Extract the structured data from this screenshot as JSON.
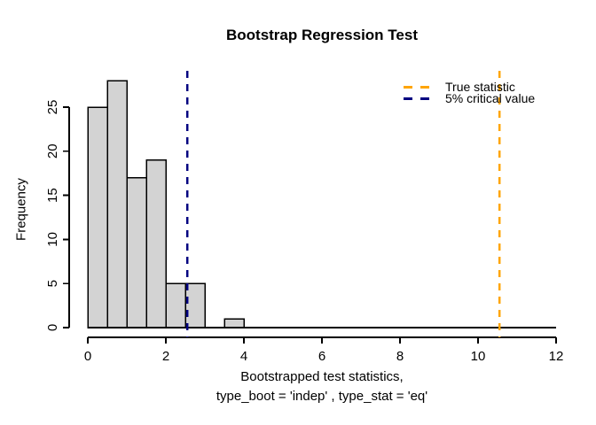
{
  "figure": {
    "title": "Bootstrap Regression Test",
    "ylabel": "Frequency",
    "xlabel_line1": "Bootstrapped test statistics,",
    "xlabel_line2": "type_boot = 'indep' , type_stat = 'eq'"
  },
  "legend": {
    "position": "top-right",
    "items": [
      {
        "label": "True statistic",
        "color": "#FFA500",
        "line_style": "dashed"
      },
      {
        "label": "5% critical value",
        "color": "#000080",
        "line_style": "dashed"
      }
    ]
  },
  "chart_data": {
    "type": "bar",
    "subtype": "histogram",
    "title": "Bootstrap Regression Test",
    "xlabel": "Bootstrapped test statistics, type_boot = 'indep' , type_stat = 'eq'",
    "ylabel": "Frequency",
    "bin_width": 0.5,
    "bin_edges": [
      0,
      0.5,
      1,
      1.5,
      2,
      2.5,
      3,
      3.5,
      4
    ],
    "counts": [
      25,
      28,
      17,
      19,
      5,
      5,
      0,
      1
    ],
    "x_ticks": [
      0,
      2,
      4,
      6,
      8,
      10,
      12
    ],
    "y_ticks": [
      0,
      5,
      10,
      15,
      20,
      25
    ],
    "xlim": [
      0,
      12
    ],
    "ylim": [
      0,
      28
    ],
    "grid": false,
    "bar_fill": "#d3d3d3",
    "bar_stroke": "#000000",
    "axis_color": "#000000",
    "vlines": [
      {
        "x": 2.55,
        "color": "#000080",
        "style": "dashed",
        "label": "5% critical value"
      },
      {
        "x": 10.55,
        "color": "#FFA500",
        "style": "dashed",
        "label": "True statistic"
      }
    ],
    "legend_position": "top-right"
  }
}
